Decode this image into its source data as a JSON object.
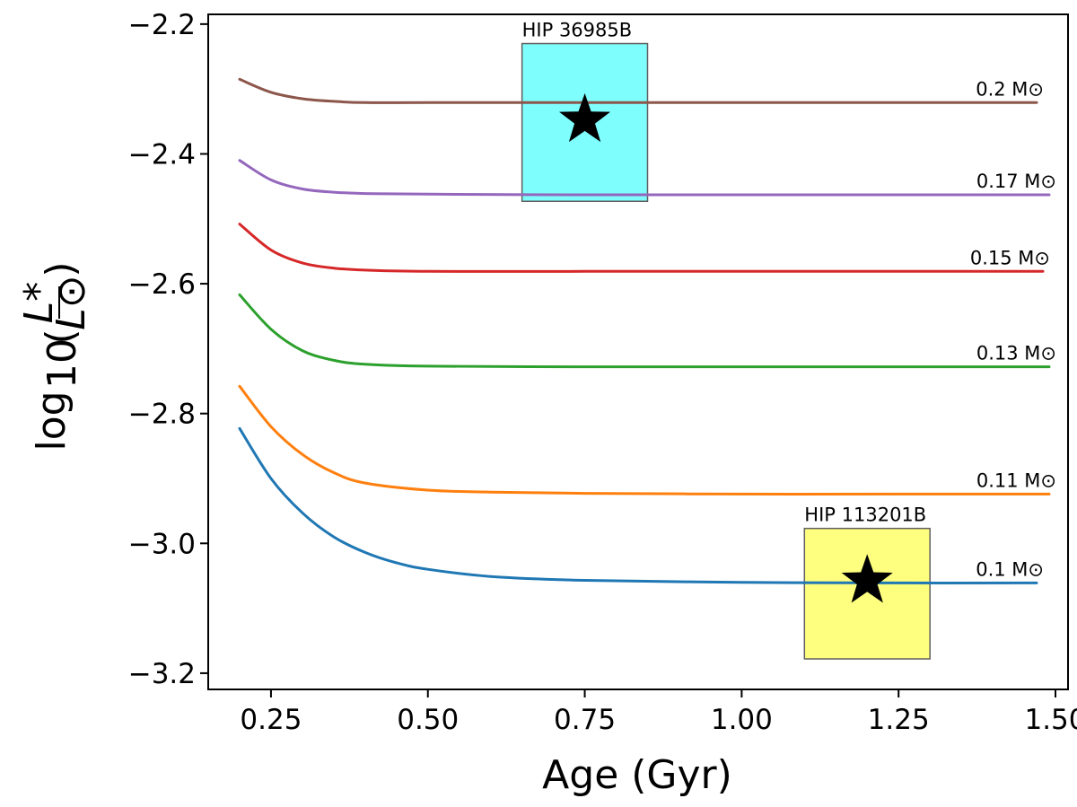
{
  "chart_data": {
    "type": "line",
    "title": "",
    "xlabel": "Age (Gyr)",
    "ylabel_prefix": "log",
    "ylabel_subscript": "10",
    "ylabel_numerator": "L*",
    "ylabel_denominator": "L⊙",
    "xlim": [
      0.15,
      1.52
    ],
    "ylim": [
      -3.225,
      -2.185
    ],
    "xticks": [
      0.25,
      0.5,
      0.75,
      1.0,
      1.25,
      1.5
    ],
    "xtick_labels": [
      "0.25",
      "0.50",
      "0.75",
      "1.00",
      "1.25",
      "1.50"
    ],
    "yticks": [
      -2.2,
      -2.4,
      -2.6,
      -2.8,
      -3.0,
      -3.2
    ],
    "ytick_labels": [
      "−2.2",
      "−2.4",
      "−2.6",
      "−2.8",
      "−3.0",
      "−3.2"
    ],
    "grid": false,
    "series": [
      {
        "name": "0.2 M⊙",
        "color": "#8c564b",
        "x": [
          0.2,
          0.25,
          0.3,
          0.35,
          0.4,
          0.5,
          0.75,
          1.0,
          1.25,
          1.47
        ],
        "y": [
          -2.285,
          -2.305,
          -2.315,
          -2.319,
          -2.321,
          -2.321,
          -2.321,
          -2.321,
          -2.321,
          -2.321
        ]
      },
      {
        "name": "0.17 M⊙",
        "color": "#9467bd",
        "x": [
          0.2,
          0.25,
          0.3,
          0.35,
          0.4,
          0.5,
          0.75,
          1.0,
          1.25,
          1.49
        ],
        "y": [
          -2.41,
          -2.44,
          -2.454,
          -2.459,
          -2.461,
          -2.462,
          -2.463,
          -2.463,
          -2.463,
          -2.463
        ]
      },
      {
        "name": "0.15 M⊙",
        "color": "#d62728",
        "x": [
          0.2,
          0.25,
          0.3,
          0.35,
          0.4,
          0.5,
          0.75,
          1.0,
          1.25,
          1.48
        ],
        "y": [
          -2.508,
          -2.548,
          -2.568,
          -2.576,
          -2.579,
          -2.581,
          -2.581,
          -2.581,
          -2.581,
          -2.581
        ]
      },
      {
        "name": "0.13 M⊙",
        "color": "#2ca02c",
        "x": [
          0.2,
          0.25,
          0.3,
          0.35,
          0.4,
          0.5,
          0.75,
          1.0,
          1.25,
          1.49
        ],
        "y": [
          -2.617,
          -2.67,
          -2.703,
          -2.718,
          -2.724,
          -2.727,
          -2.728,
          -2.728,
          -2.728,
          -2.728
        ]
      },
      {
        "name": "0.11 M⊙",
        "color": "#ff7f0e",
        "x": [
          0.2,
          0.25,
          0.3,
          0.35,
          0.4,
          0.5,
          0.6,
          0.75,
          1.0,
          1.25,
          1.49
        ],
        "y": [
          -2.758,
          -2.82,
          -2.863,
          -2.891,
          -2.907,
          -2.918,
          -2.921,
          -2.923,
          -2.924,
          -2.924,
          -2.924
        ]
      },
      {
        "name": "0.1 M⊙",
        "color": "#1f77b4",
        "x": [
          0.2,
          0.25,
          0.3,
          0.35,
          0.4,
          0.45,
          0.5,
          0.6,
          0.75,
          1.0,
          1.25,
          1.47
        ],
        "y": [
          -2.823,
          -2.9,
          -2.953,
          -2.99,
          -3.014,
          -3.03,
          -3.04,
          -3.051,
          -3.057,
          -3.06,
          -3.061,
          -3.061
        ]
      }
    ],
    "annotations": [
      {
        "label": "HIP 36985B",
        "x_range": [
          0.65,
          0.85
        ],
        "y_range": [
          -2.473,
          -2.23
        ],
        "fill": "#7ffefe",
        "marker_x": 0.75,
        "marker_y": -2.348
      },
      {
        "label": "HIP 113201B",
        "x_range": [
          1.1,
          1.3
        ],
        "y_range": [
          -3.178,
          -2.977
        ],
        "fill": "#fefe7f",
        "marker_x": 1.2,
        "marker_y": -3.058
      }
    ]
  }
}
